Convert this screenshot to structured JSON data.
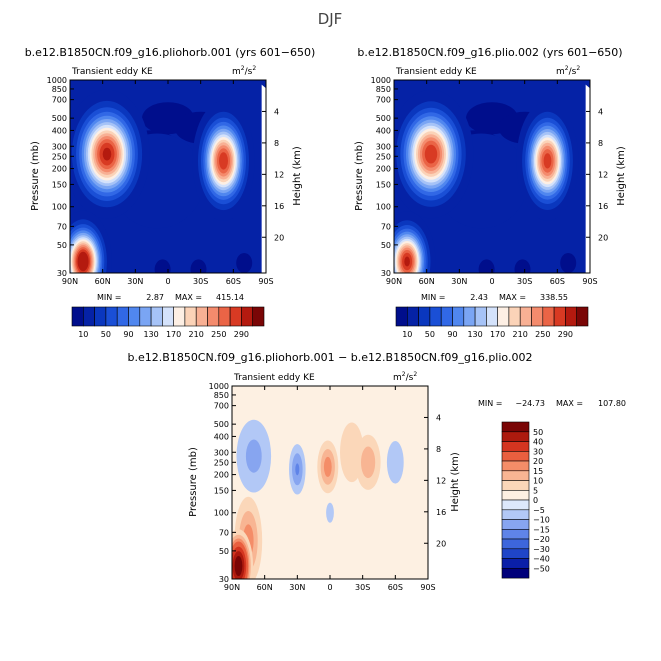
{
  "figure_title": "DJF",
  "colors": {
    "panel_background": "#edf1ff",
    "axis": "#000000"
  },
  "chart_data": [
    {
      "type": "heatmap",
      "id": "p1",
      "title": "b.e12.B1850CN.f09_g16.pliohorb.001 (yrs 601−650)",
      "variable": "Transient eddy KE",
      "units_base": "m",
      "units_exp": "2",
      "units_denom": "/s",
      "units_denom_exp": "2",
      "xlabel": "",
      "ylabel": "Pressure (mb)",
      "y2label": "Height (km)",
      "xticks": [
        "90N",
        "60N",
        "30N",
        "0",
        "30S",
        "60S",
        "90S"
      ],
      "xtick_values": [
        90,
        60,
        30,
        0,
        -30,
        -60,
        -90
      ],
      "yticks": [
        "30",
        "50",
        "70",
        "100",
        "150",
        "200",
        "250",
        "300",
        "400",
        "500",
        "700",
        "850",
        "1000"
      ],
      "ytick_values": [
        30,
        50,
        70,
        100,
        150,
        200,
        250,
        300,
        400,
        500,
        700,
        850,
        1000
      ],
      "y2ticks": [
        "4",
        "8",
        "12",
        "16",
        "20"
      ],
      "y2tick_values": [
        4,
        8,
        12,
        16,
        20
      ],
      "xlim": [
        90,
        -90
      ],
      "ylim": [
        1000,
        30
      ],
      "stat_min_label": "MIN =",
      "stat_min": "2.87",
      "stat_max_label": "MAX =",
      "stat_max": "415.14",
      "levels": [
        10,
        30,
        50,
        70,
        90,
        110,
        130,
        150,
        170,
        190,
        210,
        230,
        250,
        270,
        290
      ],
      "level_labels": [
        "10",
        "50",
        "90",
        "130",
        "170",
        "210",
        "250",
        "290"
      ],
      "palette": [
        "#000e8c",
        "#0522a6",
        "#0a37be",
        "#1a4fd6",
        "#3168e6",
        "#5087ef",
        "#7aa5f4",
        "#a6c3f7",
        "#d4e2fb",
        "#fdefe4",
        "#fbd3b8",
        "#f8b094",
        "#f48b6d",
        "#ea6446",
        "#d83a23",
        "#b41a0f",
        "#7a0606"
      ],
      "features": [
        {
          "lat": 78,
          "p": 37,
          "amp": 330,
          "slat": 10,
          "sz": 0.35
        },
        {
          "lat": 56,
          "p": 260,
          "amp": 300,
          "slat": 15,
          "sz": 0.45
        },
        {
          "lat": -51,
          "p": 230,
          "amp": 290,
          "slat": 11,
          "sz": 0.42
        },
        {
          "lat": 10,
          "p": 160,
          "amp": 28,
          "slat": 30,
          "sz": 0.6
        }
      ]
    },
    {
      "type": "heatmap",
      "id": "p2",
      "title": "b.e12.B1850CN.f09_g16.plio.002 (yrs 601−650)",
      "variable": "Transient eddy KE",
      "units_base": "m",
      "units_exp": "2",
      "units_denom": "/s",
      "units_denom_exp": "2",
      "xlabel": "",
      "ylabel": "Pressure (mb)",
      "y2label": "Height (km)",
      "xticks": [
        "90N",
        "60N",
        "30N",
        "0",
        "30S",
        "60S",
        "90S"
      ],
      "xtick_values": [
        90,
        60,
        30,
        0,
        -30,
        -60,
        -90
      ],
      "yticks": [
        "30",
        "50",
        "70",
        "100",
        "150",
        "200",
        "250",
        "300",
        "400",
        "500",
        "700",
        "850",
        "1000"
      ],
      "ytick_values": [
        30,
        50,
        70,
        100,
        150,
        200,
        250,
        300,
        400,
        500,
        700,
        850,
        1000
      ],
      "y2ticks": [
        "4",
        "8",
        "12",
        "16",
        "20"
      ],
      "y2tick_values": [
        4,
        8,
        12,
        16,
        20
      ],
      "xlim": [
        90,
        -90
      ],
      "ylim": [
        1000,
        30
      ],
      "stat_min_label": "MIN =",
      "stat_min": "2.43",
      "stat_max_label": "MAX =",
      "stat_max": "338.55",
      "levels": [
        10,
        30,
        50,
        70,
        90,
        110,
        130,
        150,
        170,
        190,
        210,
        230,
        250,
        270,
        290
      ],
      "level_labels": [
        "10",
        "50",
        "90",
        "130",
        "170",
        "210",
        "250",
        "290"
      ],
      "palette": [
        "#000e8c",
        "#0522a6",
        "#0a37be",
        "#1a4fd6",
        "#3168e6",
        "#5087ef",
        "#7aa5f4",
        "#a6c3f7",
        "#d4e2fb",
        "#fdefe4",
        "#fbd3b8",
        "#f8b094",
        "#f48b6d",
        "#ea6446",
        "#d83a23",
        "#b41a0f",
        "#7a0606"
      ],
      "features": [
        {
          "lat": 78,
          "p": 37,
          "amp": 300,
          "slat": 10,
          "sz": 0.35
        },
        {
          "lat": 56,
          "p": 260,
          "amp": 290,
          "slat": 15,
          "sz": 0.45
        },
        {
          "lat": -51,
          "p": 230,
          "amp": 285,
          "slat": 11,
          "sz": 0.42
        },
        {
          "lat": 10,
          "p": 160,
          "amp": 28,
          "slat": 30,
          "sz": 0.6
        }
      ]
    },
    {
      "type": "heatmap",
      "id": "p3",
      "title": "b.e12.B1850CN.f09_g16.pliohorb.001 − b.e12.B1850CN.f09_g16.plio.002",
      "variable": "Transient eddy KE",
      "units_base": "m",
      "units_exp": "2",
      "units_denom": "/s",
      "units_denom_exp": "2",
      "xlabel": "",
      "ylabel": "Pressure (mb)",
      "y2label": "Height (km)",
      "xticks": [
        "90N",
        "60N",
        "30N",
        "0",
        "30S",
        "60S",
        "90S"
      ],
      "xtick_values": [
        90,
        60,
        30,
        0,
        -30,
        -60,
        -90
      ],
      "yticks": [
        "30",
        "50",
        "70",
        "100",
        "150",
        "200",
        "250",
        "300",
        "400",
        "500",
        "700",
        "850",
        "1000"
      ],
      "ytick_values": [
        30,
        50,
        70,
        100,
        150,
        200,
        250,
        300,
        400,
        500,
        700,
        850,
        1000
      ],
      "y2ticks": [
        "4",
        "8",
        "12",
        "16",
        "20"
      ],
      "y2tick_values": [
        4,
        8,
        12,
        16,
        20
      ],
      "xlim": [
        90,
        -90
      ],
      "ylim": [
        1000,
        30
      ],
      "stat_min_label": "MIN =",
      "stat_min": "−24.73",
      "stat_max_label": "MAX =",
      "stat_max": "107.80",
      "levels": [
        -50,
        -40,
        -30,
        -20,
        -15,
        -10,
        -5,
        0,
        5,
        10,
        15,
        20,
        30,
        40,
        50
      ],
      "level_labels": [
        "50",
        "40",
        "30",
        "20",
        "15",
        "10",
        "5",
        "0",
        "−5",
        "−10",
        "−15",
        "−20",
        "−30",
        "−40",
        "−50"
      ],
      "palette": [
        "#00007a",
        "#0a1fa8",
        "#1f45c8",
        "#3d66dc",
        "#5f84e8",
        "#87a5f0",
        "#b2c8f6",
        "#dde8fb",
        "#fdf0e2",
        "#fbd7b9",
        "#f8b593",
        "#f48d68",
        "#e95f3f",
        "#d43520",
        "#ad1a0e",
        "#7a0505"
      ],
      "features": [
        {
          "lat": 84,
          "p": 38,
          "amp": 60,
          "slat": 6,
          "sz": 0.3
        },
        {
          "lat": 75,
          "p": 60,
          "amp": 18,
          "slat": 8,
          "sz": 0.5
        },
        {
          "lat": 70,
          "p": 280,
          "amp": -12,
          "slat": 12,
          "sz": 0.5
        },
        {
          "lat": 30,
          "p": 220,
          "amp": -16,
          "slat": 5,
          "sz": 0.3
        },
        {
          "lat": 2,
          "p": 230,
          "amp": 18,
          "slat": 6,
          "sz": 0.3
        },
        {
          "lat": -35,
          "p": 250,
          "amp": 14,
          "slat": 8,
          "sz": 0.35
        },
        {
          "lat": -20,
          "p": 300,
          "amp": 9,
          "slat": 10,
          "sz": 0.5
        },
        {
          "lat": 0,
          "p": 100,
          "amp": -6,
          "slat": 6,
          "sz": 0.3
        },
        {
          "lat": -60,
          "p": 250,
          "amp": -8,
          "slat": 8,
          "sz": 0.4
        },
        {
          "lat": -55,
          "p": 60,
          "amp": -5,
          "slat": 10,
          "sz": 0.5
        },
        {
          "lat": 20,
          "p": 150,
          "amp": 4,
          "slat": 25,
          "sz": 0.9
        }
      ]
    }
  ]
}
